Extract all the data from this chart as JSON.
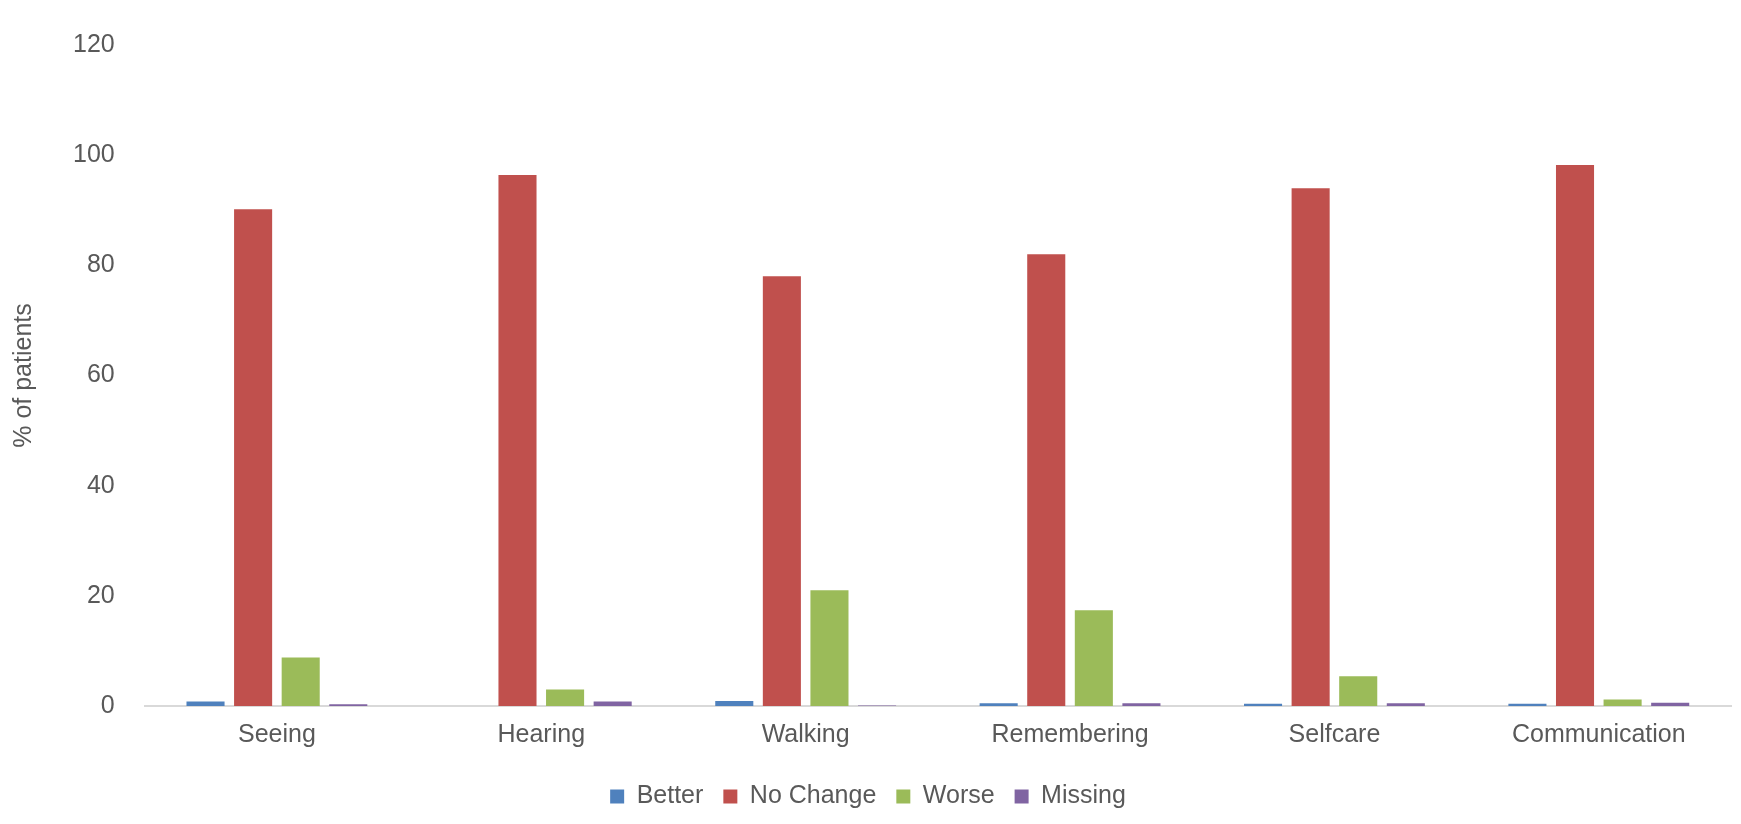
{
  "chart_data": {
    "type": "bar",
    "ylabel": "% of patients",
    "categories": [
      "Seeing",
      "Hearing",
      "Walking",
      "Remembering",
      "Selfcare",
      "Communication"
    ],
    "series": [
      {
        "name": "Better",
        "color": "#4f81bd",
        "values": [
          0.8,
          0,
          0.9,
          0.5,
          0.4,
          0.4
        ]
      },
      {
        "name": "No Change",
        "color": "#c0504d",
        "values": [
          90.2,
          96.4,
          78,
          82,
          94,
          98.2
        ]
      },
      {
        "name": "Worse",
        "color": "#9bbb59",
        "values": [
          8.8,
          3,
          21,
          17.4,
          5.4,
          1.2
        ]
      },
      {
        "name": "Missing",
        "color": "#8064a2",
        "values": [
          0.3,
          0.8,
          0.1,
          0.5,
          0.5,
          0.6
        ]
      }
    ],
    "ylim": [
      0,
      120
    ],
    "yticks": [
      0,
      20,
      40,
      60,
      80,
      100,
      120
    ],
    "grid": false,
    "legend": "bottom"
  }
}
